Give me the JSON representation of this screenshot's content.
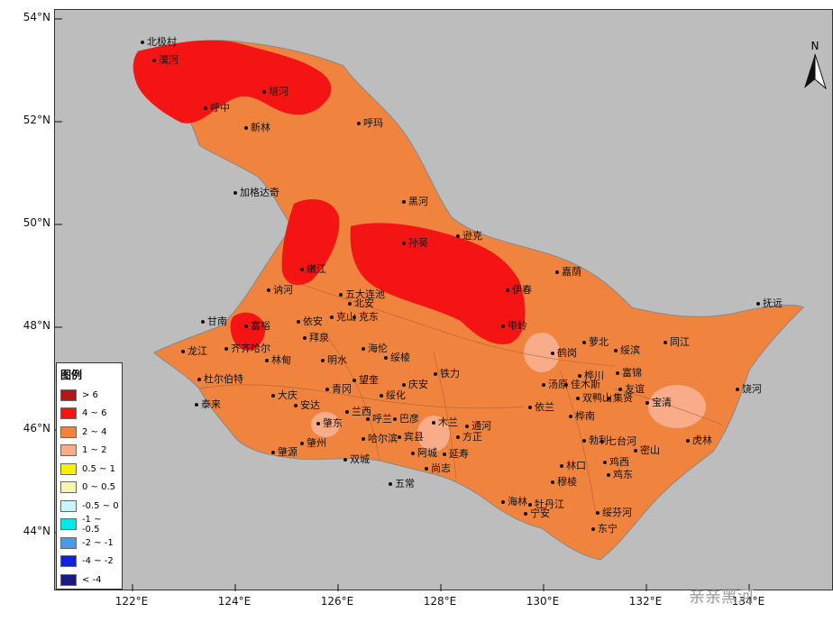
{
  "lat_labels": [
    "54°N",
    "52°N",
    "50°N",
    "48°N",
    "46°N",
    "44°N"
  ],
  "lon_labels": [
    "122°E",
    "124°E",
    "126°E",
    "128°E",
    "130°E",
    "132°E",
    "134°E"
  ],
  "legend": {
    "title": "图例",
    "items": [
      {
        "label": "> 6",
        "color": "#b01818"
      },
      {
        "label": "4 ~ 6",
        "color": "#f41414"
      },
      {
        "label": "2 ~ 4",
        "color": "#f0843e"
      },
      {
        "label": "1 ~ 2",
        "color": "#f8ac8a"
      },
      {
        "label": "0.5 ~ 1",
        "color": "#f7f000"
      },
      {
        "label": "0 ~ 0.5",
        "color": "#f6f5ae"
      },
      {
        "label": "-0.5 ~ 0",
        "color": "#c6f6f6"
      },
      {
        "label": "-1 ~ -0.5",
        "color": "#00e8e8"
      },
      {
        "label": "-2 ~ -1",
        "color": "#4a9ae6"
      },
      {
        "label": "-4 ~ -2",
        "color": "#1020e0"
      },
      {
        "label": "< -4",
        "color": "#1a1a80"
      }
    ]
  },
  "north_label": "N",
  "watermark": "亲亲黑河",
  "cities": [
    {
      "name": "北极村"
    },
    {
      "name": "漠河"
    },
    {
      "name": "塔河"
    },
    {
      "name": "呼中"
    },
    {
      "name": "新林"
    },
    {
      "name": "呼玛"
    },
    {
      "name": "加格达奇"
    },
    {
      "name": "黑河"
    },
    {
      "name": "逊克"
    },
    {
      "name": "孙吴"
    },
    {
      "name": "嫩江"
    },
    {
      "name": "嘉荫"
    },
    {
      "name": "伊春"
    },
    {
      "name": "讷河"
    },
    {
      "name": "五大连池"
    },
    {
      "name": "北安"
    },
    {
      "name": "克山"
    },
    {
      "name": "克东"
    },
    {
      "name": "依安"
    },
    {
      "name": "拜泉"
    },
    {
      "name": "甘南"
    },
    {
      "name": "富裕"
    },
    {
      "name": "齐齐哈尔"
    },
    {
      "name": "林甸"
    },
    {
      "name": "龙江"
    },
    {
      "name": "海伦"
    },
    {
      "name": "明水"
    },
    {
      "name": "绥棱"
    },
    {
      "name": "庆安"
    },
    {
      "name": "铁力"
    },
    {
      "name": "望奎"
    },
    {
      "name": "青冈"
    },
    {
      "name": "绥化"
    },
    {
      "name": "杜尔伯特"
    },
    {
      "name": "大庆"
    },
    {
      "name": "安达"
    },
    {
      "name": "泰来"
    },
    {
      "name": "兰西"
    },
    {
      "name": "呼兰"
    },
    {
      "name": "巴彦"
    },
    {
      "name": "木兰"
    },
    {
      "name": "肇东"
    },
    {
      "name": "哈尔滨"
    },
    {
      "name": "宾县"
    },
    {
      "name": "方正"
    },
    {
      "name": "通河"
    },
    {
      "name": "肇州"
    },
    {
      "name": "肇源"
    },
    {
      "name": "双城"
    },
    {
      "name": "阿城"
    },
    {
      "name": "延寿"
    },
    {
      "name": "尚志"
    },
    {
      "name": "五常"
    },
    {
      "name": "带岭"
    },
    {
      "name": "鹤岗"
    },
    {
      "name": "萝北"
    },
    {
      "name": "汤原"
    },
    {
      "name": "佳木斯"
    },
    {
      "name": "桦川"
    },
    {
      "name": "依兰"
    },
    {
      "name": "双鸭山"
    },
    {
      "name": "集贤"
    },
    {
      "name": "绥滨"
    },
    {
      "name": "富锦"
    },
    {
      "name": "同江"
    },
    {
      "name": "友谊"
    },
    {
      "name": "宝清"
    },
    {
      "name": "饶河"
    },
    {
      "name": "抚远"
    },
    {
      "name": "桦南"
    },
    {
      "name": "勃利"
    },
    {
      "name": "七台河"
    },
    {
      "name": "鸡西"
    },
    {
      "name": "林口"
    },
    {
      "name": "穆棱"
    },
    {
      "name": "鸡东"
    },
    {
      "name": "密山"
    },
    {
      "name": "虎林"
    },
    {
      "name": "海林"
    },
    {
      "name": "牡丹江"
    },
    {
      "name": "宁安"
    },
    {
      "name": "绥芬河"
    },
    {
      "name": "东宁"
    }
  ]
}
